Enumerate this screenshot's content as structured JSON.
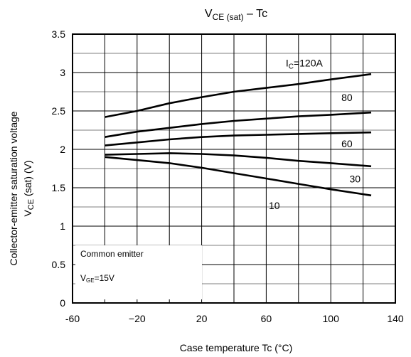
{
  "chart_data": {
    "type": "line",
    "title": {
      "main": "V",
      "sub": "CE (sat)",
      "rest": " – Tc"
    },
    "xlabel": "Case temperature   Tc   (°C)",
    "ylabel": {
      "line1": "Collector-emitter saturation voltage",
      "main": "V",
      "sub": "CE",
      "rest": " (sat)   (V)"
    },
    "xlim": [
      -60,
      140
    ],
    "ylim": [
      0,
      3.5
    ],
    "xticks": [
      "-60",
      "−20",
      "20",
      "60",
      "100",
      "140"
    ],
    "xtick_values": [
      -60,
      -20,
      20,
      60,
      100,
      140
    ],
    "yticks": [
      "0",
      "0.5",
      "1",
      "1.5",
      "2",
      "2.5",
      "3",
      "3.5"
    ],
    "ytick_values": [
      0,
      0.5,
      1,
      1.5,
      2,
      2.5,
      3,
      3.5
    ],
    "grid": true,
    "x_minor_gridlines": [
      -40,
      0,
      40,
      80,
      120
    ],
    "series": [
      {
        "name": "I_C=120A",
        "x": [
          -40,
          -20,
          0,
          20,
          40,
          60,
          80,
          100,
          125
        ],
        "values": [
          2.42,
          2.5,
          2.6,
          2.68,
          2.75,
          2.8,
          2.85,
          2.91,
          2.98
        ]
      },
      {
        "name": "80",
        "x": [
          -40,
          -20,
          0,
          20,
          40,
          60,
          80,
          100,
          125
        ],
        "values": [
          2.16,
          2.23,
          2.28,
          2.33,
          2.37,
          2.4,
          2.43,
          2.45,
          2.48
        ]
      },
      {
        "name": "60",
        "x": [
          -40,
          -20,
          0,
          20,
          40,
          60,
          80,
          100,
          125
        ],
        "values": [
          2.05,
          2.09,
          2.13,
          2.16,
          2.18,
          2.19,
          2.2,
          2.21,
          2.22
        ]
      },
      {
        "name": "30",
        "x": [
          -40,
          -20,
          0,
          20,
          40,
          60,
          80,
          100,
          125
        ],
        "values": [
          1.93,
          1.94,
          1.95,
          1.94,
          1.92,
          1.89,
          1.85,
          1.82,
          1.78
        ]
      },
      {
        "name": "10",
        "x": [
          -40,
          -20,
          0,
          20,
          40,
          60,
          80,
          100,
          125
        ],
        "values": [
          1.9,
          1.86,
          1.82,
          1.76,
          1.69,
          1.62,
          1.55,
          1.48,
          1.4
        ]
      }
    ],
    "series_labels": [
      {
        "main": "I",
        "sub": "C",
        "rest": "=120A"
      },
      {
        "main": "80",
        "sub": "",
        "rest": ""
      },
      {
        "main": "60",
        "sub": "",
        "rest": ""
      },
      {
        "main": "30",
        "sub": "",
        "rest": ""
      },
      {
        "main": "10",
        "sub": "",
        "rest": ""
      }
    ],
    "annotation": {
      "line1": "Common emitter",
      "line2_main": "V",
      "line2_sub": "GE",
      "line2_rest": "=15V"
    }
  }
}
